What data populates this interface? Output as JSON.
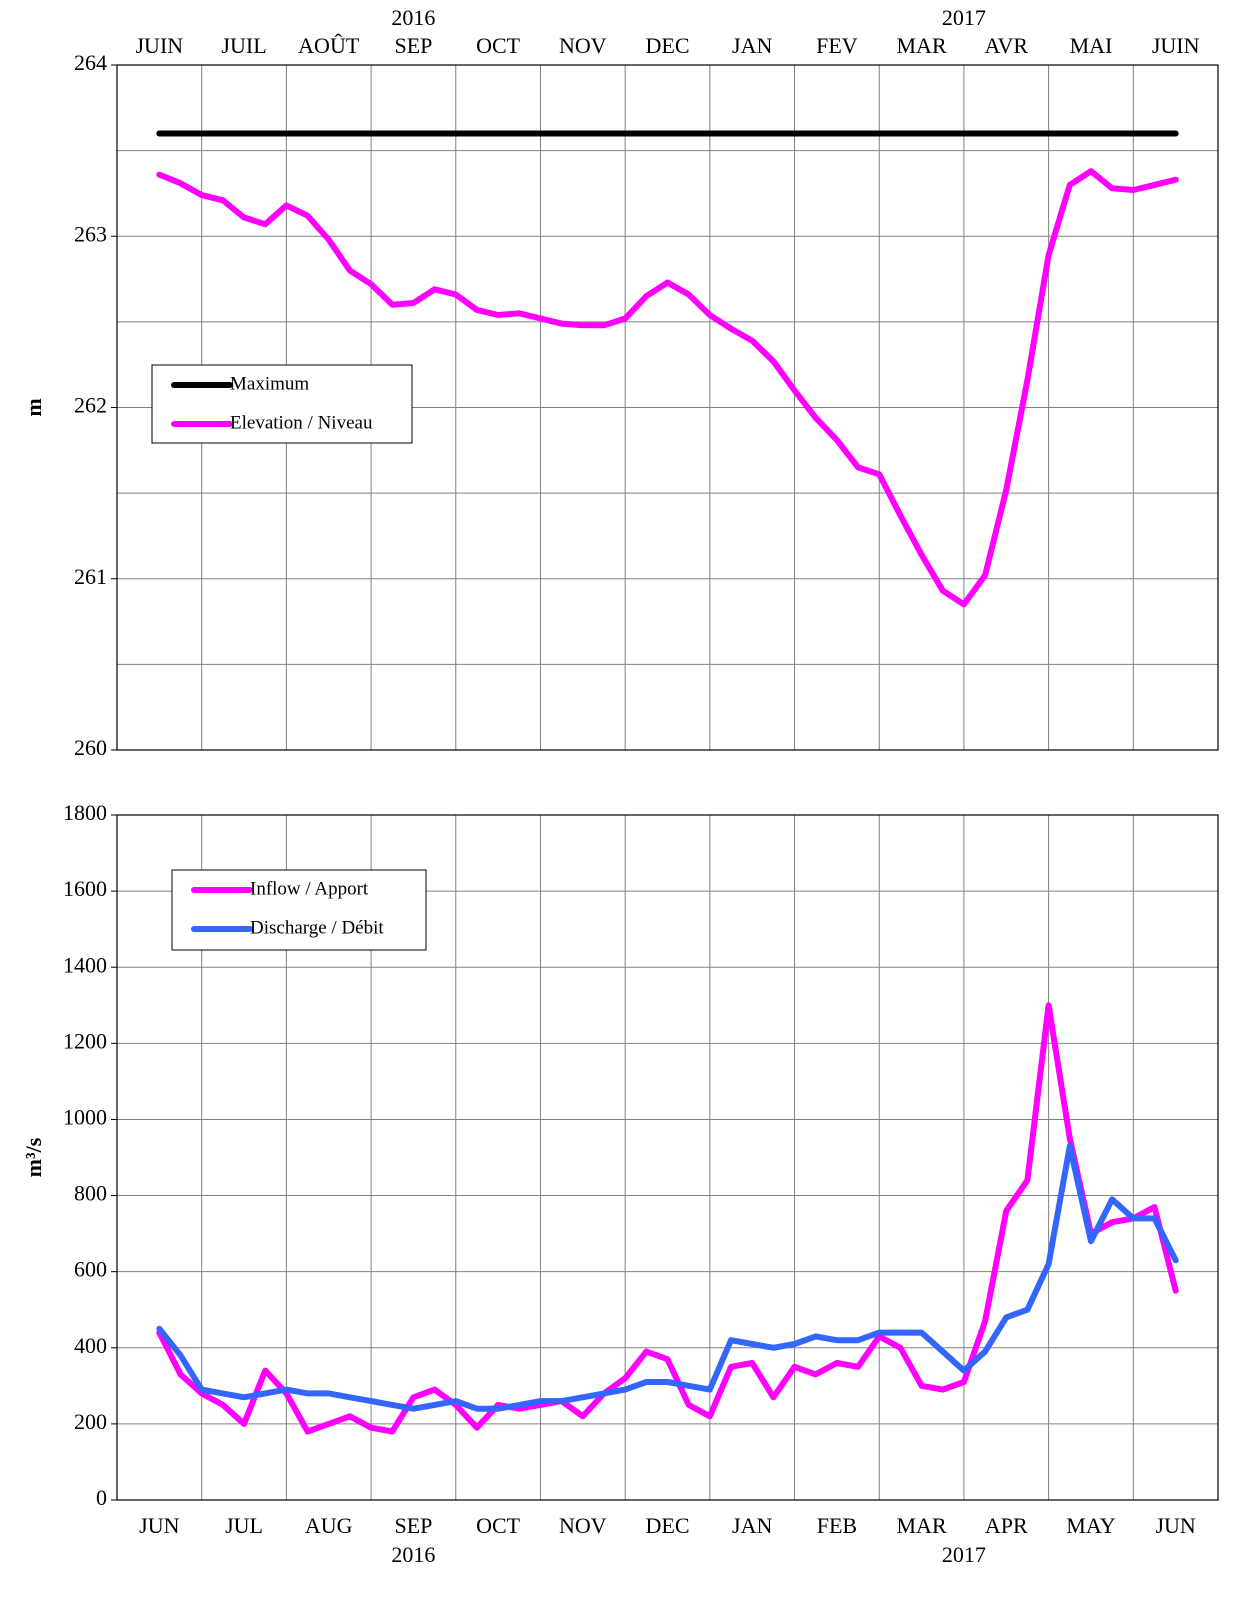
{
  "chart_data": [
    {
      "type": "line",
      "y_label": "m",
      "categories": [
        "JUIN",
        "JUIL",
        "AOÛT",
        "SEP",
        "OCT",
        "NOV",
        "DEC",
        "JAN",
        "FEV",
        "MAR",
        "AVR",
        "MAI",
        "JUIN"
      ],
      "years": [
        "2016",
        "2017"
      ],
      "xlim": [
        0,
        13
      ],
      "xticks": [
        0,
        1,
        2,
        3,
        4,
        5,
        6,
        7,
        8,
        9,
        10,
        11,
        12,
        13
      ],
      "x": [
        0.5,
        0.75,
        1,
        1.25,
        1.5,
        1.75,
        2,
        2.25,
        2.5,
        2.75,
        3,
        3.25,
        3.5,
        3.75,
        4,
        4.25,
        4.5,
        4.75,
        5,
        5.25,
        5.5,
        5.75,
        6,
        6.25,
        6.5,
        6.75,
        7,
        7.25,
        7.5,
        7.75,
        8,
        8.25,
        8.5,
        8.75,
        9,
        9.25,
        9.5,
        9.75,
        10,
        10.25,
        10.5,
        10.75,
        11,
        11.25,
        11.5,
        11.75,
        12,
        12.25,
        12.5
      ],
      "ylim": [
        260,
        264
      ],
      "yticks": [
        260,
        261,
        262,
        263,
        264
      ],
      "minor_yticks": [
        260.5,
        261.5,
        262.5,
        263.5
      ],
      "series": [
        {
          "name": "Maximum",
          "color": "#000000",
          "values": [
            263.6,
            263.6,
            263.6,
            263.6,
            263.6,
            263.6,
            263.6,
            263.6,
            263.6,
            263.6,
            263.6,
            263.6,
            263.6,
            263.6,
            263.6,
            263.6,
            263.6,
            263.6,
            263.6,
            263.6,
            263.6,
            263.6,
            263.6,
            263.6,
            263.6,
            263.6,
            263.6,
            263.6,
            263.6,
            263.6,
            263.6,
            263.6,
            263.6,
            263.6,
            263.6,
            263.6,
            263.6,
            263.6,
            263.6,
            263.6,
            263.6,
            263.6,
            263.6,
            263.6,
            263.6,
            263.6,
            263.6,
            263.6,
            263.6
          ]
        },
        {
          "name": "Elevation / Niveau",
          "color": "#ff00ff",
          "values": [
            263.36,
            263.31,
            263.24,
            263.21,
            263.11,
            263.07,
            263.18,
            263.12,
            262.98,
            262.8,
            262.72,
            262.6,
            262.61,
            262.69,
            262.66,
            262.57,
            262.54,
            262.55,
            262.52,
            262.49,
            262.48,
            262.48,
            262.52,
            262.65,
            262.73,
            262.66,
            262.54,
            262.46,
            262.39,
            262.27,
            262.1,
            261.94,
            261.81,
            261.65,
            261.61,
            261.37,
            261.14,
            260.93,
            260.85,
            261.02,
            261.52,
            262.16,
            262.89,
            263.3,
            263.38,
            263.28,
            263.27,
            263.3,
            263.33
          ]
        }
      ]
    },
    {
      "type": "line",
      "y_label": "m³/s",
      "categories": [
        "JUN",
        "JUL",
        "AUG",
        "SEP",
        "OCT",
        "NOV",
        "DEC",
        "JAN",
        "FEB",
        "MAR",
        "APR",
        "MAY",
        "JUN"
      ],
      "years": [
        "2016",
        "2017"
      ],
      "xlim": [
        0,
        13
      ],
      "xticks": [
        0,
        1,
        2,
        3,
        4,
        5,
        6,
        7,
        8,
        9,
        10,
        11,
        12,
        13
      ],
      "x": [
        0.5,
        0.75,
        1,
        1.25,
        1.5,
        1.75,
        2,
        2.25,
        2.5,
        2.75,
        3,
        3.25,
        3.5,
        3.75,
        4,
        4.25,
        4.5,
        4.75,
        5,
        5.25,
        5.5,
        5.75,
        6,
        6.25,
        6.5,
        6.75,
        7,
        7.25,
        7.5,
        7.75,
        8,
        8.25,
        8.5,
        8.75,
        9,
        9.25,
        9.5,
        9.75,
        10,
        10.25,
        10.5,
        10.75,
        11,
        11.25,
        11.5,
        11.75,
        12,
        12.25,
        12.5
      ],
      "ylim": [
        0,
        1800
      ],
      "yticks": [
        0,
        200,
        400,
        600,
        800,
        1000,
        1200,
        1400,
        1600,
        1800
      ],
      "series": [
        {
          "name": "Inflow / Apport",
          "color": "#ff00ff",
          "values": [
            440,
            330,
            280,
            250,
            200,
            340,
            280,
            180,
            200,
            220,
            190,
            180,
            270,
            290,
            250,
            190,
            250,
            240,
            250,
            260,
            220,
            280,
            320,
            390,
            370,
            250,
            220,
            350,
            360,
            270,
            350,
            330,
            360,
            350,
            430,
            400,
            300,
            290,
            310,
            470,
            760,
            840,
            1300,
            950,
            700,
            730,
            740,
            770,
            550
          ]
        },
        {
          "name": "Discharge / Débit",
          "color": "#3366ff",
          "values": [
            450,
            380,
            290,
            280,
            270,
            280,
            290,
            280,
            280,
            270,
            260,
            250,
            240,
            250,
            260,
            240,
            240,
            250,
            260,
            260,
            270,
            280,
            290,
            310,
            310,
            300,
            290,
            420,
            410,
            400,
            410,
            430,
            420,
            420,
            440,
            440,
            440,
            390,
            340,
            390,
            480,
            500,
            620,
            930,
            680,
            790,
            740,
            740,
            630
          ]
        }
      ]
    }
  ]
}
